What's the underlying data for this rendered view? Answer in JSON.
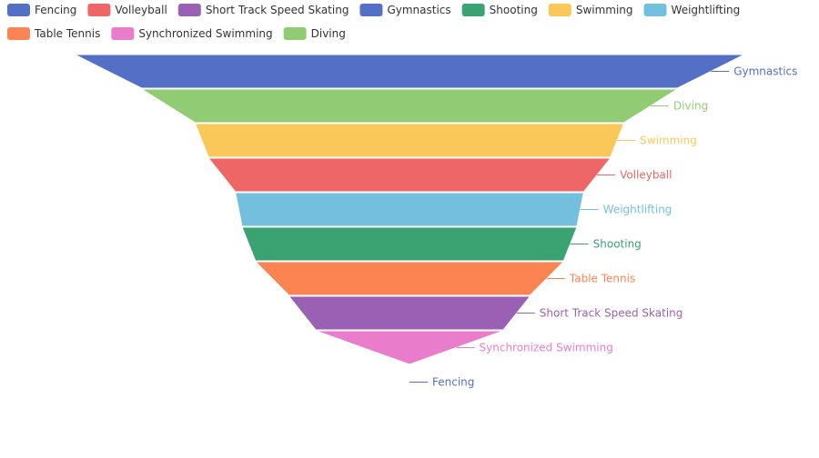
{
  "chart_data": {
    "type": "funnel",
    "title": "",
    "legend": {
      "position": "top",
      "items": [
        {
          "label": "Fencing",
          "color": "#5470c6"
        },
        {
          "label": "Volleyball",
          "color": "#ee6666"
        },
        {
          "label": "Short Track Speed Skating",
          "color": "#9a60b4"
        },
        {
          "label": "Gymnastics",
          "color": "#5470c6"
        },
        {
          "label": "Shooting",
          "color": "#3ba272"
        },
        {
          "label": "Swimming",
          "color": "#fac858"
        },
        {
          "label": "Weightlifting",
          "color": "#73c0de"
        },
        {
          "label": "Table Tennis",
          "color": "#fc8452"
        },
        {
          "label": "Synchronized Swimming",
          "color": "#ea7ccc"
        },
        {
          "label": "Diving",
          "color": "#91cc75"
        }
      ]
    },
    "stages": [
      {
        "label": "Gymnastics",
        "value": 100,
        "color": "#5470c6"
      },
      {
        "label": "Diving",
        "value": 80,
        "color": "#91cc75"
      },
      {
        "label": "Swimming",
        "value": 64,
        "color": "#fac858"
      },
      {
        "label": "Volleyball",
        "value": 60,
        "color": "#ee6666"
      },
      {
        "label": "Weightlifting",
        "value": 52,
        "color": "#73c0de"
      },
      {
        "label": "Shooting",
        "value": 50,
        "color": "#3ba272"
      },
      {
        "label": "Table Tennis",
        "value": 46,
        "color": "#fc8452"
      },
      {
        "label": "Short Track Speed Skating",
        "value": 36,
        "color": "#9a60b4"
      },
      {
        "label": "Synchronized Swimming",
        "value": 28,
        "color": "#ea7ccc"
      },
      {
        "label": "Fencing",
        "value": 0,
        "color": "#5470c6"
      }
    ],
    "sort": "descending",
    "label_position": "right"
  }
}
